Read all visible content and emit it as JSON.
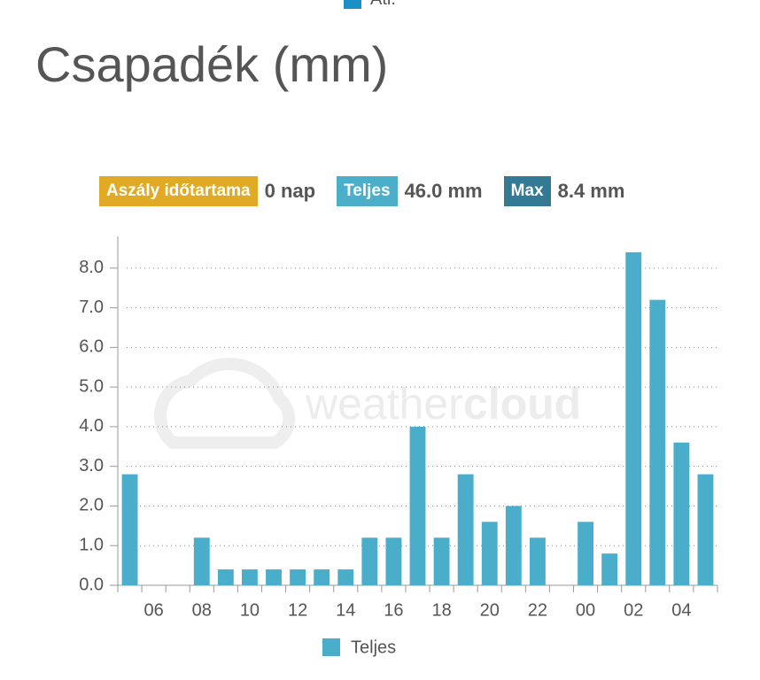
{
  "header": {
    "legend_top": "Átl.",
    "title": "Csapadék (mm)"
  },
  "badges": [
    {
      "label": "Aszály időtartama",
      "value": "0 nap",
      "color": "#e0aa24"
    },
    {
      "label": "Teljes",
      "value": "46.0 mm",
      "color": "#4bafc9"
    },
    {
      "label": "Max",
      "value": "8.4 mm",
      "color": "#357a94"
    }
  ],
  "chart_data": {
    "type": "bar",
    "watermark": [
      "weather",
      "cloud"
    ],
    "categories": [
      null,
      "06",
      null,
      "08",
      null,
      "10",
      null,
      "12",
      null,
      "14",
      null,
      "16",
      null,
      "18",
      null,
      "20",
      null,
      "22",
      null,
      "00",
      null,
      "02",
      null,
      "04",
      null
    ],
    "series": [
      {
        "name": "Teljes",
        "color": "#4aaecb",
        "values": [
          2.8,
          0,
          0,
          1.2,
          0.4,
          0.4,
          0.4,
          0.4,
          0.4,
          0.4,
          1.2,
          1.2,
          4.0,
          1.2,
          2.8,
          1.6,
          2.0,
          1.2,
          0,
          1.6,
          0.8,
          8.4,
          7.2,
          3.6,
          2.8
        ]
      }
    ],
    "ylim": [
      0,
      8.8
    ],
    "yticks": [
      {
        "value": 0,
        "label": "0.0"
      },
      {
        "value": 1,
        "label": "1.0"
      },
      {
        "value": 2,
        "label": "2.0"
      },
      {
        "value": 3,
        "label": "3.0"
      },
      {
        "value": 4,
        "label": "4.0"
      },
      {
        "value": 5,
        "label": "5.0"
      },
      {
        "value": 6,
        "label": "6.0"
      },
      {
        "value": 7,
        "label": "7.0"
      },
      {
        "value": 8,
        "label": "8.0"
      }
    ],
    "grid": true
  }
}
